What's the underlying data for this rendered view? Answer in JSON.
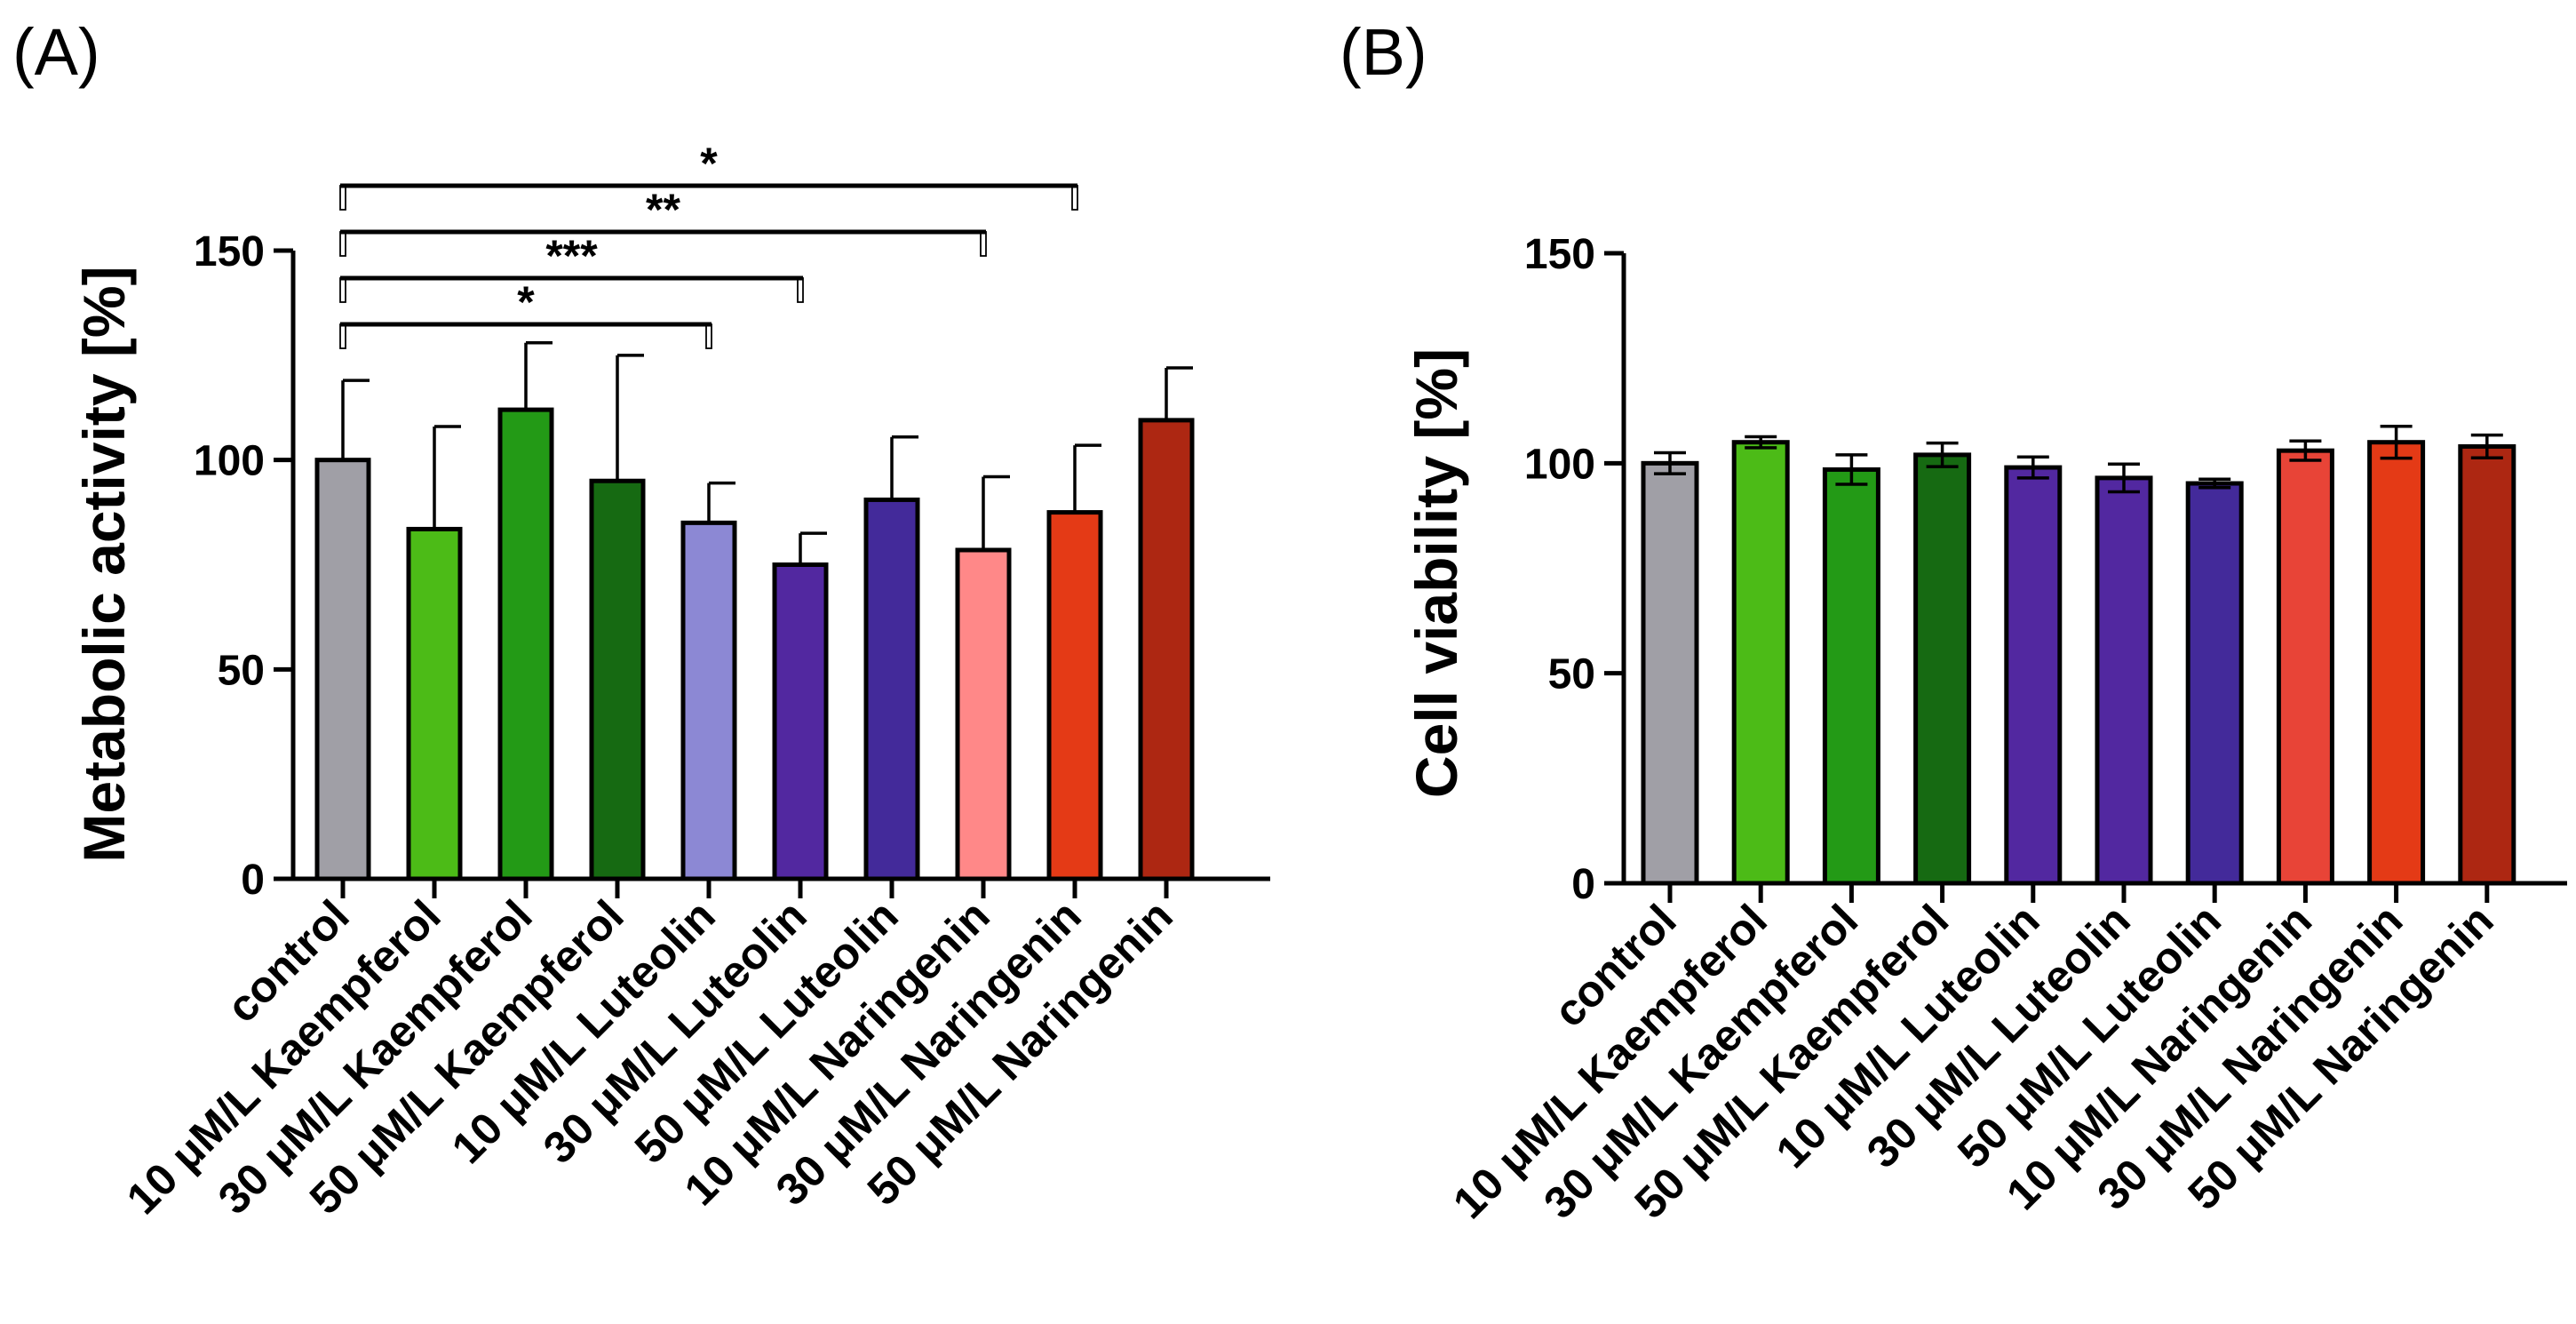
{
  "chart_data": [
    {
      "panel": "(A)",
      "type": "bar",
      "ylabel": "Metabolic activity [%]",
      "ylim": [
        0,
        150
      ],
      "yticks": [
        0,
        50,
        100,
        150
      ],
      "categories": [
        "control",
        "10 μM/L Kaempferol",
        "30 μM/L Kaempferol",
        "50 μM/L Kaempferol",
        "10 μM/L Luteolin",
        "30 μM/L Luteolin",
        "50 μM/L Luteolin",
        "10 μM/L Naringenin",
        "30 μM/L Naringenin",
        "50 μM/L Naringenin"
      ],
      "values": [
        100,
        83.5,
        112,
        95,
        85,
        75,
        90.5,
        78.5,
        87.5,
        109.5
      ],
      "errors": [
        19,
        24.5,
        16,
        30,
        9.5,
        7.5,
        15,
        17.5,
        16,
        12.5
      ],
      "colors": [
        "#a09fa6",
        "#4cbb17",
        "#239a16",
        "#166a12",
        "#8c88d4",
        "#5228a0",
        "#432a9a",
        "#ff8888",
        "#e43a16",
        "#ad2712"
      ],
      "error_style": "upper",
      "significance": [
        {
          "from": 0,
          "to": 4,
          "label": "*"
        },
        {
          "from": 0,
          "to": 5,
          "label": "***"
        },
        {
          "from": 0,
          "to": 7,
          "label": "**"
        },
        {
          "from": 0,
          "to": 8,
          "label": "*"
        }
      ]
    },
    {
      "panel": "(B)",
      "type": "bar",
      "ylabel": "Cell viability [%]",
      "ylim": [
        0,
        150
      ],
      "yticks": [
        0,
        50,
        100,
        150
      ],
      "categories": [
        "control",
        "10 μM/L Kaempferol",
        "30 μM/L Kaempferol",
        "50 μM/L Kaempferol",
        "10 μM/L Luteolin",
        "30 μM/L Luteolin",
        "50 μM/L Luteolin",
        "10 μM/L Naringenin",
        "30 μM/L Naringenin",
        "50 μM/L Naringenin"
      ],
      "values": [
        100,
        105,
        98.5,
        102,
        99,
        96.5,
        95.2,
        103,
        105,
        104
      ],
      "errors": [
        2.5,
        1.3,
        3.5,
        2.8,
        2.5,
        3.3,
        1.0,
        2.3,
        3.8,
        2.7
      ],
      "colors": [
        "#a09fa6",
        "#4cbb17",
        "#239a16",
        "#166a12",
        "#5228a0",
        "#5228a0",
        "#432a9a",
        "#e84437",
        "#e43a16",
        "#ad2712"
      ],
      "error_style": "both",
      "significance": []
    }
  ]
}
